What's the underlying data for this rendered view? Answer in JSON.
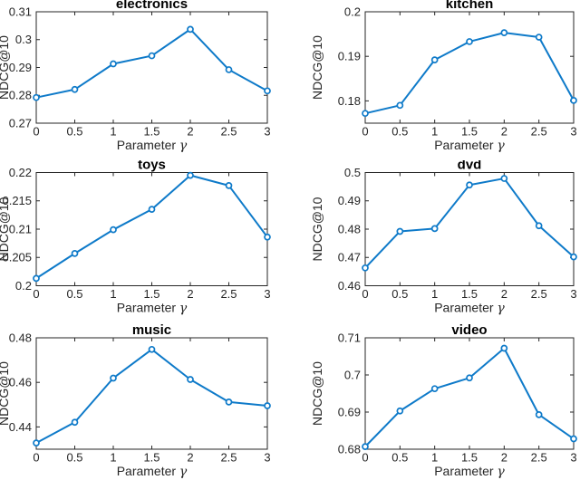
{
  "figure": {
    "background": "#ffffff",
    "line_color": "#0e7ac9",
    "marker_fill": "#ffffff",
    "axis_color": "#262626",
    "tick_text_color": "#262626",
    "title_color": "#000000"
  },
  "chart_data": [
    {
      "type": "line",
      "title": "electronics",
      "ylabel": "NDCG@10",
      "xlabel": "Parameter γ",
      "legend_position": "none",
      "grid": false,
      "marker": "o",
      "x": [
        0,
        0.5,
        1,
        1.5,
        2,
        2.5,
        3
      ],
      "values": [
        0.2792,
        0.2821,
        0.2913,
        0.2942,
        0.3037,
        0.2892,
        0.2816
      ],
      "xlim": [
        0,
        3
      ],
      "ylim": [
        0.27,
        0.31
      ],
      "xticks": [
        0,
        0.5,
        1,
        1.5,
        2,
        2.5,
        3
      ],
      "xtick_labels": [
        "0",
        "0.5",
        "1",
        "1.5",
        "2",
        "2.5",
        "3"
      ],
      "yticks": [
        0.27,
        0.28,
        0.29,
        0.3,
        0.31
      ],
      "ytick_labels": [
        "0.27",
        "0.28",
        "0.29",
        "0.3",
        "0.31"
      ]
    },
    {
      "type": "line",
      "title": "kitchen",
      "ylabel": "NDCG@10",
      "xlabel": "Parameter γ",
      "legend_position": "none",
      "grid": false,
      "marker": "o",
      "x": [
        0,
        0.5,
        1,
        1.5,
        2,
        2.5,
        3
      ],
      "values": [
        0.1772,
        0.179,
        0.1892,
        0.1933,
        0.1953,
        0.1943,
        0.1801
      ],
      "xlim": [
        0,
        3
      ],
      "ylim": [
        0.175,
        0.2
      ],
      "xticks": [
        0,
        0.5,
        1,
        1.5,
        2,
        2.5,
        3
      ],
      "xtick_labels": [
        "0",
        "0.5",
        "1",
        "1.5",
        "2",
        "2.5",
        "3"
      ],
      "yticks": [
        0.18,
        0.19,
        0.2
      ],
      "ytick_labels": [
        "0.18",
        "0.19",
        "0.2"
      ]
    },
    {
      "type": "line",
      "title": "toys",
      "ylabel": "NDCG@10",
      "xlabel": "Parameter γ",
      "legend_position": "none",
      "grid": false,
      "marker": "o",
      "x": [
        0,
        0.5,
        1,
        1.5,
        2,
        2.5,
        3
      ],
      "values": [
        0.2013,
        0.2057,
        0.2099,
        0.2135,
        0.2195,
        0.2177,
        0.2086
      ],
      "xlim": [
        0,
        3
      ],
      "ylim": [
        0.2,
        0.22
      ],
      "xticks": [
        0,
        0.5,
        1,
        1.5,
        2,
        2.5,
        3
      ],
      "xtick_labels": [
        "0",
        "0.5",
        "1",
        "1.5",
        "2",
        "2.5",
        "3"
      ],
      "yticks": [
        0.2,
        0.205,
        0.21,
        0.215,
        0.22
      ],
      "ytick_labels": [
        "0.2",
        "0.205",
        "0.21",
        "0.215",
        "0.22"
      ]
    },
    {
      "type": "line",
      "title": "dvd",
      "ylabel": "NDCG@10",
      "xlabel": "Parameter γ",
      "legend_position": "none",
      "grid": false,
      "marker": "o",
      "x": [
        0,
        0.5,
        1,
        1.5,
        2,
        2.5,
        3
      ],
      "values": [
        0.4663,
        0.4792,
        0.4802,
        0.4956,
        0.4979,
        0.4812,
        0.4702
      ],
      "xlim": [
        0,
        3
      ],
      "ylim": [
        0.46,
        0.5
      ],
      "xticks": [
        0,
        0.5,
        1,
        1.5,
        2,
        2.5,
        3
      ],
      "xtick_labels": [
        "0",
        "0.5",
        "1",
        "1.5",
        "2",
        "2.5",
        "3"
      ],
      "yticks": [
        0.46,
        0.47,
        0.48,
        0.49,
        0.5
      ],
      "ytick_labels": [
        "0.46",
        "0.47",
        "0.48",
        "0.49",
        "0.5"
      ]
    },
    {
      "type": "line",
      "title": "music",
      "ylabel": "NDCG@10",
      "xlabel": "Parameter γ",
      "legend_position": "none",
      "grid": false,
      "marker": "o",
      "x": [
        0,
        0.5,
        1,
        1.5,
        2,
        2.5,
        3
      ],
      "values": [
        0.4328,
        0.4421,
        0.4619,
        0.4748,
        0.4613,
        0.4512,
        0.4495
      ],
      "xlim": [
        0,
        3
      ],
      "ylim": [
        0.43,
        0.48
      ],
      "xticks": [
        0,
        0.5,
        1,
        1.5,
        2,
        2.5,
        3
      ],
      "xtick_labels": [
        "0",
        "0.5",
        "1",
        "1.5",
        "2",
        "2.5",
        "3"
      ],
      "yticks": [
        0.44,
        0.46,
        0.48
      ],
      "ytick_labels": [
        "0.44",
        "0.46",
        "0.48"
      ]
    },
    {
      "type": "line",
      "title": "video",
      "ylabel": "NDCG@10",
      "xlabel": "Parameter γ",
      "legend_position": "none",
      "grid": false,
      "marker": "o",
      "x": [
        0,
        0.5,
        1,
        1.5,
        2,
        2.5,
        3
      ],
      "values": [
        0.6807,
        0.6903,
        0.6963,
        0.6992,
        0.7072,
        0.6893,
        0.6828
      ],
      "xlim": [
        0,
        3
      ],
      "ylim": [
        0.68,
        0.71
      ],
      "xticks": [
        0,
        0.5,
        1,
        1.5,
        2,
        2.5,
        3
      ],
      "xtick_labels": [
        "0",
        "0.5",
        "1",
        "1.5",
        "2",
        "2.5",
        "3"
      ],
      "yticks": [
        0.68,
        0.69,
        0.7,
        0.71
      ],
      "ytick_labels": [
        "0.68",
        "0.69",
        "0.7",
        "0.71"
      ]
    }
  ]
}
